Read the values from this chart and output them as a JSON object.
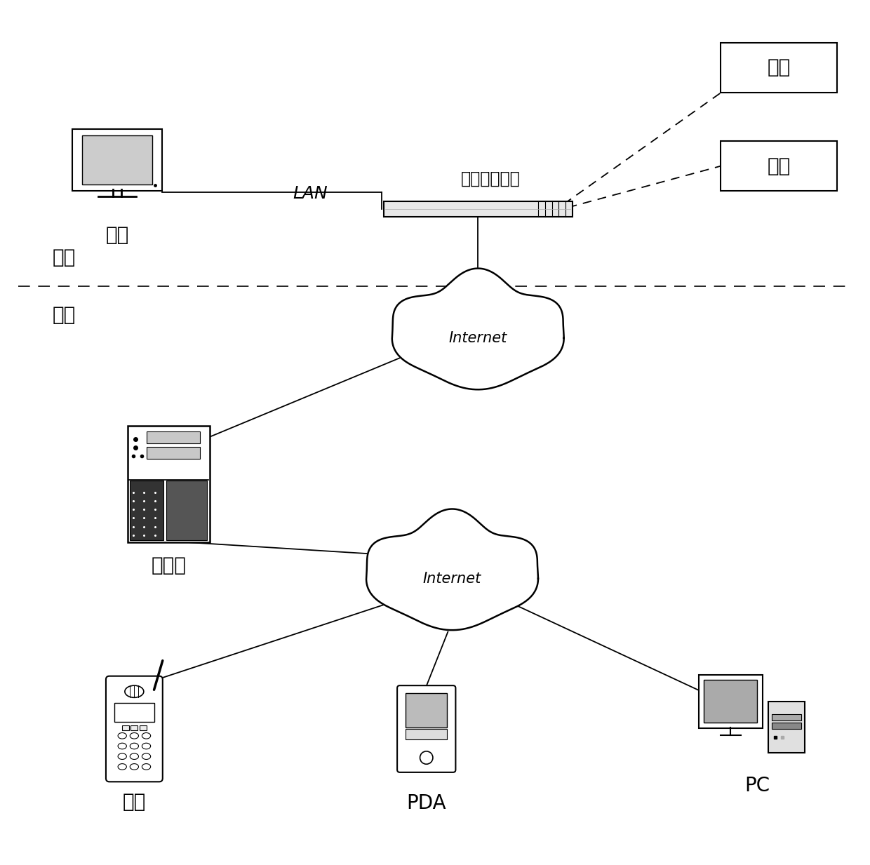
{
  "bg_color": "#ffffff",
  "label_jianei": "家内",
  "label_jiawai": "家外",
  "label_lan": "LAN",
  "label_jiating": "家庭网络中心",
  "label_dianshi": "电视",
  "label_fuwuqi": "服务器",
  "label_shouji": "手机",
  "label_pda": "PDA",
  "label_pc": "PC",
  "label_jiadian1": "家电",
  "label_jiadian2": "家电",
  "label_internet1": "Internet",
  "label_internet2": "Internet",
  "font_size_main": 20,
  "font_size_label": 18,
  "font_size_small": 15
}
